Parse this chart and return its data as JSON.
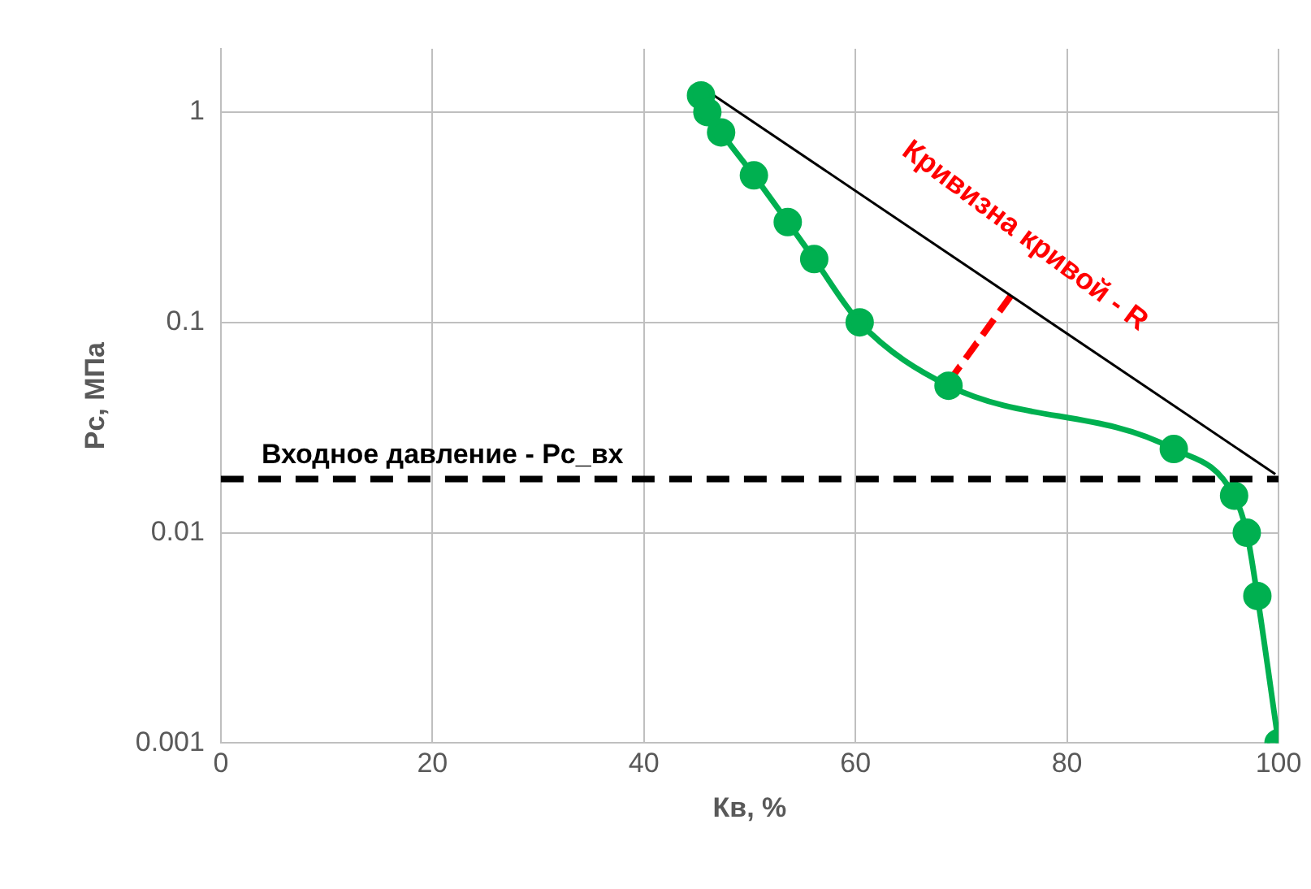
{
  "chart_data": {
    "type": "line",
    "xlabel": "Кв, %",
    "ylabel": "Рс, МПа",
    "log": "y",
    "xlim": [
      0,
      100
    ],
    "xticks": [
      0,
      20,
      40,
      60,
      80,
      100
    ],
    "ylim": [
      0.001,
      2
    ],
    "yticks": [
      0.001,
      0.01,
      0.1,
      1
    ],
    "grid": true,
    "legend": false,
    "series": [
      {
        "color": "#00b050",
        "marker": "circle",
        "line_style": "solid",
        "x": [
          45.4,
          46,
          47.3,
          50.4,
          53.6,
          56.1,
          60.4,
          68.8,
          90.1,
          95.8,
          97,
          98,
          100
        ],
        "values": [
          1.2,
          1.0,
          0.8,
          0.5,
          0.3,
          0.2,
          0.1,
          0.05,
          0.025,
          0.015,
          0.01,
          0.005,
          0.001
        ]
      },
      {
        "color": "#000000",
        "marker": "none",
        "line_style": "solid",
        "x": [
          46,
          99.7
        ],
        "values": [
          1.26,
          0.019
        ]
      },
      {
        "color": "#ff0000",
        "marker": "none",
        "line_style": "dashed",
        "x": [
          68.8,
          74.7
        ],
        "values": [
          0.052,
          0.134
        ]
      }
    ],
    "ref_lines": [
      {
        "axis": "y",
        "value": 0.018,
        "label": "Входное давление - Pc_вх",
        "color": "#000000",
        "line_style": "dashed"
      }
    ],
    "annotations": [
      "Кривизна кривой - R"
    ]
  }
}
